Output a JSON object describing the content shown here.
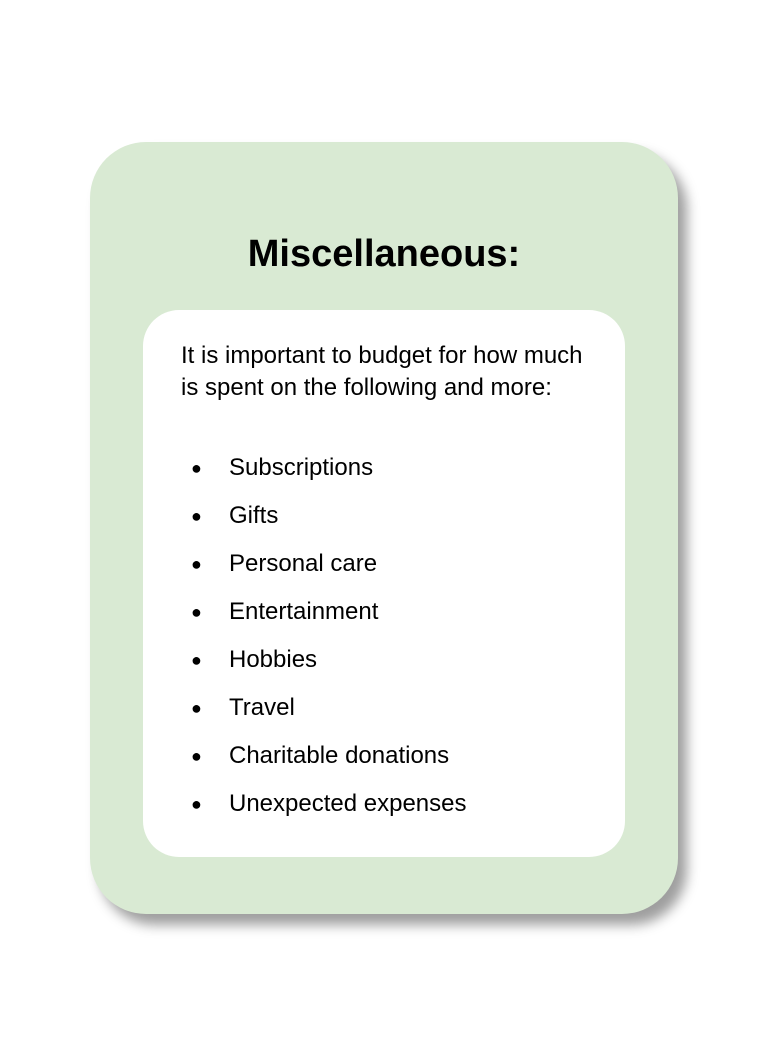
{
  "card": {
    "title": "Miscellaneous:",
    "intro": "It is important to budget for how much is spent on the following and more:",
    "bullet_glyph": "●",
    "items": [
      "Subscriptions",
      "Gifts",
      "Personal care",
      "Entertainment",
      "Hobbies",
      "Travel",
      "Charitable donations",
      "Unexpected expenses"
    ]
  },
  "colors": {
    "card_background": "#d9ead3",
    "panel_background": "#ffffff",
    "text": "#000000"
  }
}
